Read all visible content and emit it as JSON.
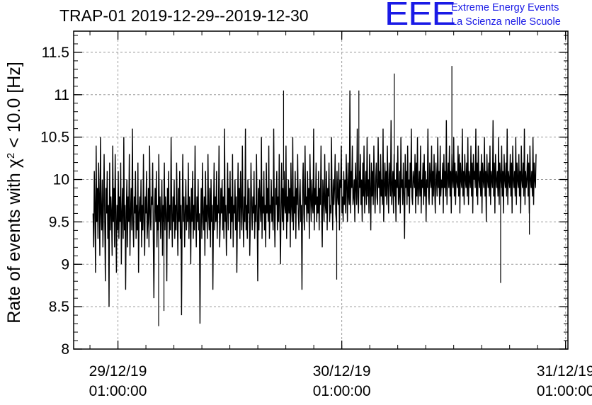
{
  "header": {
    "title": "TRAP-01 2019-12-29--2019-12-30",
    "logo_mark": "EEE",
    "logo_line1": "Extreme Energy Events",
    "logo_line2": "La Scienza nelle Scuole"
  },
  "colors": {
    "logo": "#1a1ae6",
    "line": "#000000",
    "grid": "#9a9a9a"
  },
  "chart_data": {
    "type": "line",
    "title": "TRAP-01 2019-12-29--2019-12-30",
    "ylabel_main": "Rate of events with χ",
    "ylabel_sup": "2",
    "ylabel_tail": " < 10.0 [Hz]",
    "xlabel": "",
    "ylim": [
      8,
      11.75
    ],
    "yticks": [
      {
        "value": 8,
        "label": "8"
      },
      {
        "value": 8.5,
        "label": "8.5"
      },
      {
        "value": 9,
        "label": "9"
      },
      {
        "value": 9.5,
        "label": "9.5"
      },
      {
        "value": 10,
        "label": "10"
      },
      {
        "value": 10.5,
        "label": "10.5"
      },
      {
        "value": 11,
        "label": "11"
      },
      {
        "value": 11.5,
        "label": "11.5"
      }
    ],
    "xlim": [
      "2019-12-28 20:15",
      "2019-12-31 01:15"
    ],
    "xticks": [
      {
        "value": "2019-12-29 01:00",
        "line1": "29/12/19",
        "line2": "01:00:00"
      },
      {
        "value": "2019-12-30 01:00",
        "line1": "30/12/19",
        "line2": "01:00:00"
      },
      {
        "value": "2019-12-31 01:00",
        "line1": "31/12/19",
        "line2": "01:00:00"
      }
    ],
    "grid": true,
    "series": [
      {
        "x_start": "2019-12-28 22:20",
        "x_end": "2019-12-30 21:50",
        "values": [
          9.6,
          9.2,
          10.1,
          9.7,
          8.9,
          10.4,
          9.5,
          9.9,
          9.3,
          10.2,
          9.8,
          9.1,
          10.5,
          9.6,
          9.4,
          10,
          9.2,
          9.7,
          10.3,
          9.5,
          8.8,
          9.9,
          9.6,
          10.1,
          9.3,
          9.7,
          8.5,
          10.2,
          9.4,
          9.8,
          9.6,
          9.1,
          10.4,
          9.5,
          9.9,
          9.2,
          10.3,
          9.6,
          8.9,
          9.7,
          9.4,
          10.1,
          9.3,
          9.8,
          9.5,
          10.2,
          9,
          9.6,
          9.9,
          9.3,
          10.5,
          9.4,
          9.7,
          8.7,
          9.6,
          10,
          9.2,
          9.8,
          9.5,
          10.3,
          9.1,
          9.6,
          9.9,
          9.4,
          10.6,
          9.5,
          9.2,
          9.8,
          9.6,
          10.1,
          9.3,
          9.7,
          9.4,
          10.2,
          8.9,
          9.6,
          9.8,
          9.5,
          10,
          9.2,
          9.7,
          9.4,
          10.3,
          9.5,
          9.1,
          9.8,
          9.6,
          10.1,
          9.3,
          9.5,
          9.9,
          9.2,
          10.4,
          9.6,
          9.4,
          9.8,
          9.7,
          10.2,
          9.3,
          8.6,
          9.6,
          9.9,
          9.5,
          10.1,
          9.2,
          9.7,
          9.4,
          10.3,
          9.5,
          9.8,
          9.3,
          9.6,
          10,
          9.1,
          9.7,
          9.5,
          10.2,
          9.4,
          9.8,
          9.6,
          8.8,
          9.9,
          9.5,
          10.1,
          9.3,
          9.7,
          9.4,
          10.5,
          9.6,
          9.2,
          9.8,
          9.5,
          10,
          9.3,
          9.7,
          9.4,
          10.2,
          9.6,
          9.1,
          9.9,
          9.5,
          10.1,
          9.3,
          9.7,
          8.4,
          9.6,
          10.3,
          9.5,
          9.8,
          9.2,
          9.6,
          10,
          9.4,
          9.7,
          9.5,
          10.2,
          9.3,
          9.8,
          9.6,
          9,
          9.9,
          9.5,
          10.1,
          9.3,
          9.7,
          9.4,
          10.4,
          9.6,
          9.2,
          9.8,
          9.5,
          10,
          9.4,
          9.6,
          8.3,
          9.5,
          9.9,
          9.3,
          10.2,
          9.6,
          9.4,
          9.8,
          9.1,
          10.1,
          9.5,
          9.7,
          9.3,
          10.3,
          9.6,
          9.4,
          9.9,
          9.2,
          10,
          9.5,
          9.7,
          8.7,
          9.6,
          10.2,
          9.4,
          9.8,
          9.5,
          10.1,
          9.3,
          9.7,
          9.6,
          10.4,
          9.2,
          9.5,
          9.9,
          9.6,
          10,
          9.4,
          9.8,
          9.3,
          10.6,
          9.5,
          9.7,
          9.1,
          9.6,
          10.2,
          9.4,
          9.9,
          9.6,
          10.1,
          9.3,
          9.8,
          9.5,
          10.3,
          9.2,
          9.7,
          9.6,
          10,
          9.4,
          9.8,
          8.9,
          9.6,
          10.2,
          9.5,
          9.9,
          9.3,
          10.1,
          9.7,
          9.4,
          10.4,
          9.6,
          9.2,
          9.8,
          9.5,
          10.6,
          9.4,
          9.7,
          9.3,
          10,
          9.6,
          9.9,
          9.1,
          9.5,
          10.2,
          9.7,
          9.4,
          9.8,
          9.6,
          10.1,
          9.3,
          9.7,
          9.5,
          10.3,
          9.6,
          8.8,
          9.9,
          9.4,
          10,
          9.7,
          9.5,
          10.5,
          9.3,
          9.8,
          9.6,
          10.1,
          9.4,
          9.7,
          9.2,
          10.2,
          9.6,
          9.9,
          9.5,
          10.4,
          9.3,
          9.7,
          9.6,
          10,
          9.5,
          9.8,
          9.4,
          10.6,
          9.6,
          9.2,
          9.9,
          9.7,
          10.1,
          9.4,
          9.8,
          9.5,
          10.3,
          9.6,
          9,
          9.7,
          10.2,
          9.5,
          9.9,
          9.4,
          10.1,
          9.7,
          9.6,
          10.4,
          9.3,
          9.8,
          9.5,
          10,
          9.6,
          9.9,
          9.2,
          10.2,
          9.7,
          9.5,
          10.5,
          9.4,
          9.8,
          9.6,
          10.1,
          9.3,
          9.9,
          9.7,
          10.3,
          9.6,
          9.4,
          9.8,
          10,
          9.5,
          9.7,
          8.7,
          9.9,
          10.2,
          9.6,
          9.4,
          10.4,
          9.7,
          9.8,
          9.5,
          10.1,
          9.6,
          9.9,
          9.3,
          10.3,
          9.8,
          9.5,
          10,
          9.7,
          9.6,
          10.6,
          9.4,
          9.9,
          9.7,
          10.2,
          9.5,
          9.8,
          9.6,
          10.1,
          9.4,
          9.9,
          9.7,
          10.4,
          9.6,
          9.2,
          10,
          9.8,
          9.5,
          10.3,
          9.7,
          9.6,
          10.1,
          9.4,
          9.9,
          9.8,
          10.2,
          9.5,
          9.7,
          9.6,
          10.5,
          9.8,
          9.4,
          10,
          9.7,
          9.9,
          10.3,
          9.6,
          9.5,
          10.1,
          9.8,
          9.7,
          10.2,
          9.4,
          10,
          9.9,
          10.4,
          9.6,
          9.8,
          9.5,
          10.1,
          9.7,
          10,
          9.6,
          10.3,
          9.9,
          9.5,
          10.2,
          9.8,
          9.7,
          11.05,
          9.6,
          10.1,
          9.9,
          10.4,
          9.7,
          9.8,
          10,
          9.5,
          10.2,
          9.9,
          9.7,
          10.6,
          9.8,
          9.6,
          10.1,
          9.9,
          10.3,
          9.7,
          10,
          9.5,
          10.2,
          9.8,
          10.4,
          9.6,
          9.9,
          10.1,
          9.7,
          10.5,
          9.8,
          10,
          9.6,
          10.3,
          9.9,
          9.4,
          10.2,
          9.8,
          10.1,
          9.7,
          10.4,
          9.9,
          9.6,
          10,
          10.2,
          9.8,
          9.7,
          10.5,
          9.9,
          10.1,
          9.6,
          10.3,
          9.8,
          10,
          9.7,
          10.6,
          9.5,
          9.9,
          10.2,
          9.8,
          10.1,
          9.7,
          10.4,
          9.9,
          9.6,
          10.2,
          10,
          9.8,
          10.7,
          9.7,
          9.9,
          10.1,
          9.6,
          10.3,
          9.8,
          10,
          9.5,
          10.2,
          9.9,
          10.4,
          9.7,
          9.8,
          10.1,
          9.6,
          10.5,
          9.9,
          10,
          9.7,
          10.2,
          9.8,
          9.3,
          10.3,
          9.9,
          10.1,
          9.7,
          10.4,
          9.8,
          10,
          9.6,
          10.2,
          9.9,
          10.6,
          9.8,
          9.7,
          10.1,
          10,
          9.9,
          10.3,
          9.6,
          10.2,
          9.8,
          10.5,
          9.7,
          9.9,
          10.1,
          9.8,
          10.4,
          9.6,
          10,
          9.9,
          10.2,
          9.7,
          10.3,
          9.8,
          10.1,
          9.5,
          10,
          9.9,
          10.6,
          9.8,
          9.7,
          10.2,
          10,
          9.9,
          10.4,
          9.7,
          10.1,
          9.8,
          10.3,
          9.9,
          9.6,
          10.2,
          10,
          9.8,
          10.5,
          9.9,
          10.1,
          9.7,
          10.4,
          9.8,
          10,
          9.9,
          10.2,
          9.6,
          10.3,
          9.9,
          10.1,
          9.8,
          10.7,
          9.7,
          10,
          10.2,
          9.9,
          10.4,
          9.8,
          10.1,
          9.6,
          10.3,
          10,
          9.9,
          10.5,
          9.8,
          10.2,
          9.7,
          10.1,
          10,
          9.9,
          10.4,
          9.8,
          10.3,
          9.6,
          10.2,
          10,
          9.9,
          10.6,
          9.8,
          10.1,
          9.7,
          10.3,
          10,
          9.9,
          10.2,
          9.8,
          10.5,
          9.7,
          10.1,
          10,
          9.9,
          10.4,
          9.8,
          10.2,
          9.6,
          10.3,
          10,
          10.1,
          9.9,
          10.6,
          9.8,
          10.2,
          9.7,
          10.4,
          10,
          9.9,
          10.1,
          9.8,
          10.3,
          9.6,
          10.2,
          10,
          9.9,
          10.5,
          9.8,
          10.1,
          9.5,
          10.3,
          10,
          9.9,
          10.2,
          9.8,
          10.4,
          9.7,
          10.1,
          10,
          9.9,
          10.7,
          9.8,
          10.2,
          9.6,
          10.3,
          10,
          9.9,
          10.1,
          9.8,
          10.5,
          9.7,
          10.2,
          10,
          9.9,
          10.4,
          9.8,
          10.1,
          9.6,
          10.3,
          10,
          9.9,
          10.2,
          9.8,
          10.6,
          9.7,
          10.1,
          10,
          9.9,
          10.3,
          9.8,
          10.2,
          9.6,
          10.4,
          10,
          9.9,
          10.1,
          9.8,
          10.5,
          9.7,
          10.2,
          10,
          9.9,
          10.3,
          9.8,
          10.1,
          9.6,
          10.4,
          10,
          9.9,
          10.2,
          9.8,
          10.6,
          9.7,
          10.1,
          9.9,
          10,
          10.3,
          9.8,
          10.2,
          9.6,
          10.4,
          10,
          9.9,
          10.1,
          9.8,
          10.5,
          9.7,
          10.2,
          10,
          9.9,
          10.3
        ],
        "spikes": [
          {
            "at": 0.16,
            "value": 8.45
          },
          {
            "at": 0.148,
            "value": 8.27
          },
          {
            "at": 0.43,
            "value": 11.05
          },
          {
            "at": 0.55,
            "value": 8.82
          },
          {
            "at": 0.6,
            "value": 11.05
          },
          {
            "at": 0.68,
            "value": 11.25
          },
          {
            "at": 0.81,
            "value": 11.34
          },
          {
            "at": 0.92,
            "value": 8.78
          },
          {
            "at": 0.985,
            "value": 9.35
          }
        ]
      }
    ]
  }
}
